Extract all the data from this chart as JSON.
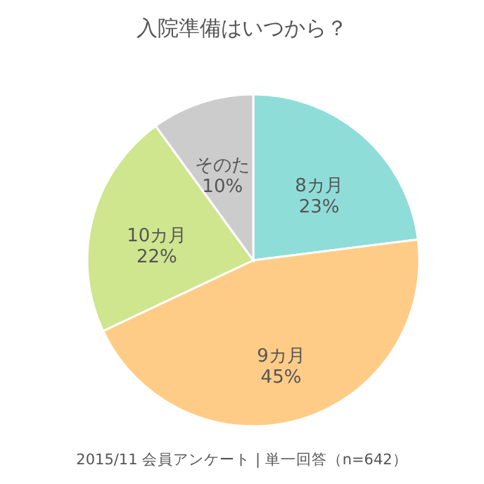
{
  "chart_data": {
    "type": "pie",
    "title": "入院準備はいつから？",
    "categories": [
      "8カ月",
      "9カ月",
      "10カ月",
      "そのた"
    ],
    "values": [
      23,
      45,
      22,
      10
    ],
    "value_labels": [
      "23%",
      "45%",
      "22%",
      "10%"
    ],
    "colors": [
      "#8fddd9",
      "#ffcc88",
      "#cfe58e",
      "#cccccc"
    ],
    "annotations": [
      "2015/11 会員アンケート | 単一回答（n=642）"
    ]
  }
}
